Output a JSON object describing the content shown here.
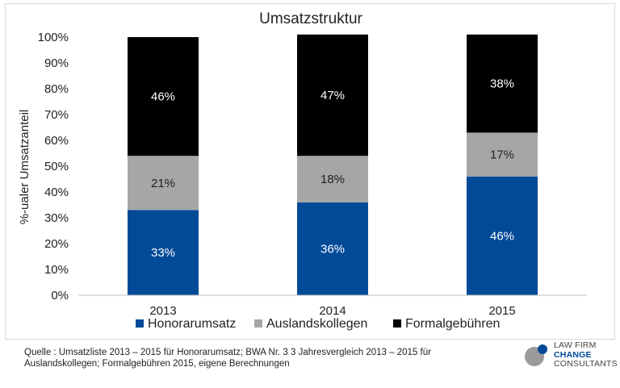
{
  "chart_data": {
    "type": "bar",
    "stacked": true,
    "title": "Umsatzstruktur",
    "ylabel": "%-ualer Umsatzanteil",
    "xlabel": "",
    "ylim": [
      0,
      100
    ],
    "yticks": [
      "0%",
      "10%",
      "20%",
      "30%",
      "40%",
      "50%",
      "60%",
      "70%",
      "80%",
      "90%",
      "100%"
    ],
    "categories": [
      "2013",
      "2014",
      "2015"
    ],
    "series": [
      {
        "name": "Honorarumsatz",
        "color": "#004a98",
        "label_color": "#ffffff",
        "values": [
          33,
          36,
          46
        ],
        "labels": [
          "33%",
          "36%",
          "46%"
        ]
      },
      {
        "name": "Auslandskollegen",
        "color": "#a6a6a6",
        "label_color": "#222222",
        "values": [
          21,
          18,
          17
        ],
        "labels": [
          "21%",
          "18%",
          "17%"
        ]
      },
      {
        "name": "Formalgebühren",
        "color": "#000000",
        "label_color": "#ffffff",
        "values": [
          46,
          47,
          38
        ],
        "labels": [
          "46%",
          "47%",
          "38%"
        ]
      }
    ],
    "legend": "bottom",
    "grid": false
  },
  "source_note": "Quelle : Umsatzliste 2013 – 2015 für Honorarumsatz; BWA Nr. 3 3 Jahresvergleich 2013 – 2015 für Auslandskollegen; Formalgebühren 2015, eigene Berechnungen",
  "logo": {
    "line1": "LAW FIRM",
    "line2": "CHANGE",
    "line3": "CONSULTANTS",
    "mark_icon": "circles-logo-icon"
  }
}
